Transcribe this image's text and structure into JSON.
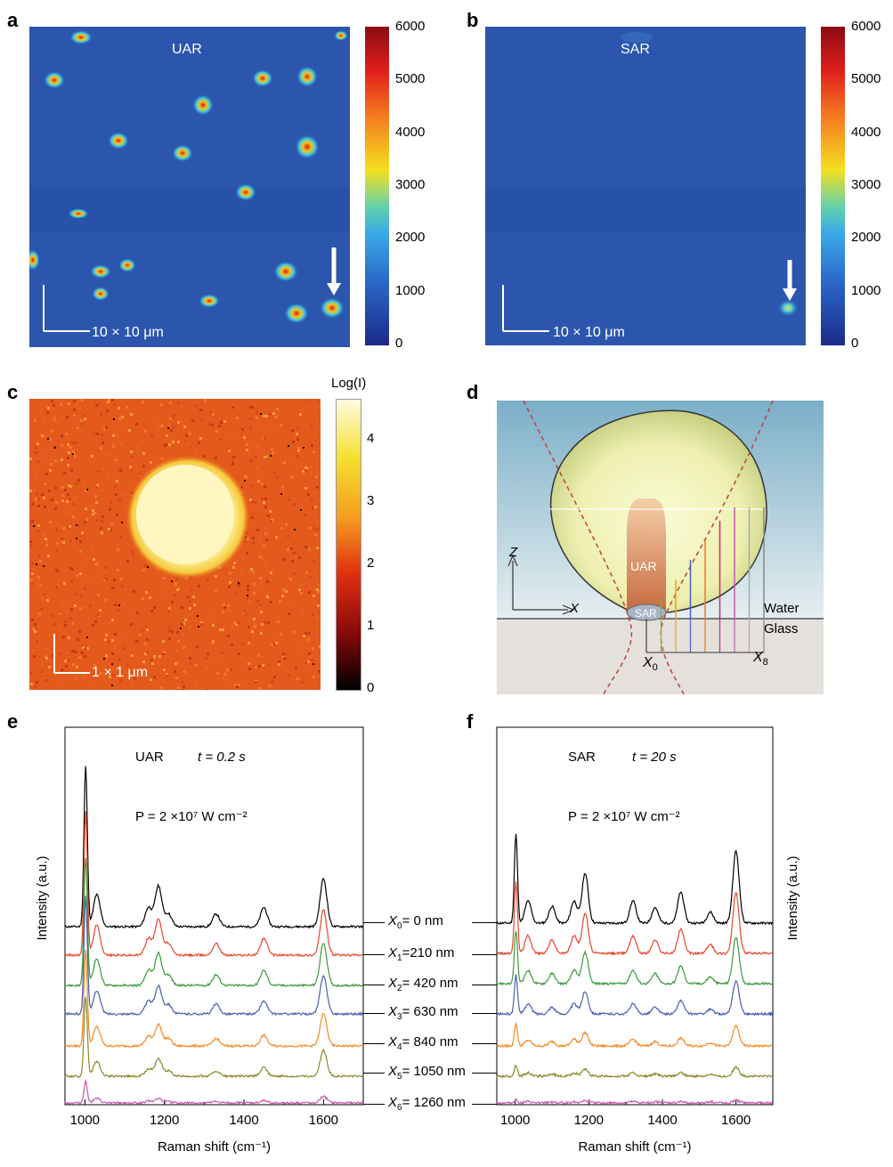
{
  "panels": {
    "a": {
      "letter": "a",
      "title": "UAR",
      "scale": "10 × 10 μm",
      "colorbar_ticks": [
        "6000",
        "5000",
        "4000",
        "3000",
        "2000",
        "1000",
        "0"
      ]
    },
    "b": {
      "letter": "b",
      "title": "SAR",
      "scale": "10 × 10 μm",
      "colorbar_ticks": [
        "6000",
        "5000",
        "4000",
        "3000",
        "2000",
        "1000",
        "0"
      ]
    },
    "c": {
      "letter": "c",
      "scale": "1 × 1 μm",
      "colorbar_title": "Log(I)",
      "colorbar_ticks": [
        "4",
        "3",
        "2",
        "1",
        "0"
      ]
    },
    "d": {
      "letter": "d",
      "uar": "UAR",
      "sar": "SAR",
      "z": "Z",
      "x": "X",
      "water": "Water",
      "glass": "Glass",
      "x0": "X",
      "x0_sub": "0",
      "x8": "X",
      "x8_sub": "8"
    },
    "e": {
      "letter": "e",
      "label": "UAR",
      "time": "t = 0.2 s",
      "power": "P = 2 ×10⁷ W cm⁻²",
      "ylabel": "Intensity (a.u.)",
      "xlabel": "Raman shift (cm⁻¹)"
    },
    "f": {
      "letter": "f",
      "label": "SAR",
      "time": "t = 20 s",
      "power": "P = 2 ×10⁷ W cm⁻²",
      "ylabel": "Intensity (a.u.)",
      "xlabel": "Raman shift (cm⁻¹)"
    }
  },
  "positions_labels": [
    {
      "x": "X",
      "sub": "0",
      "val": "= 0 nm"
    },
    {
      "x": "X",
      "sub": "1",
      "val": "=210 nm"
    },
    {
      "x": "X",
      "sub": "2",
      "val": "= 420 nm"
    },
    {
      "x": "X",
      "sub": "3",
      "val": "= 630 nm"
    },
    {
      "x": "X",
      "sub": "4",
      "val": "= 840 nm"
    },
    {
      "x": "X",
      "sub": "5",
      "val": "= 1050 nm"
    },
    {
      "x": "X",
      "sub": "6",
      "val": "= 1260 nm"
    }
  ],
  "chart_data": [
    {
      "type": "line",
      "panel": "e",
      "xlabel": "Raman shift (cm⁻¹)",
      "ylabel": "Intensity (a.u.)",
      "xlim": [
        950,
        1700
      ],
      "xticks": [
        1000,
        1200,
        1400,
        1600
      ],
      "series_colors": [
        "#000000",
        "#e8452c",
        "#3a9a3a",
        "#4a5fb0",
        "#f08a24",
        "#8a8a2a",
        "#c858b0"
      ],
      "peaks": [
        {
          "x": 1002,
          "amp": [
            150,
            135,
            120,
            110,
            90,
            75,
            20
          ]
        },
        {
          "x": 1030,
          "amp": [
            30,
            28,
            25,
            22,
            18,
            14,
            4
          ]
        },
        {
          "x": 1160,
          "amp": [
            18,
            16,
            14,
            12,
            9,
            7,
            2
          ]
        },
        {
          "x": 1185,
          "amp": [
            38,
            34,
            30,
            26,
            20,
            16,
            4
          ]
        },
        {
          "x": 1210,
          "amp": [
            12,
            11,
            10,
            9,
            7,
            5,
            1
          ]
        },
        {
          "x": 1330,
          "amp": [
            12,
            11,
            10,
            9,
            7,
            5,
            1
          ]
        },
        {
          "x": 1450,
          "amp": [
            18,
            16,
            14,
            12,
            10,
            8,
            2
          ]
        },
        {
          "x": 1600,
          "amp": [
            45,
            42,
            40,
            36,
            30,
            24,
            6
          ]
        }
      ]
    },
    {
      "type": "line",
      "panel": "f",
      "xlabel": "Raman shift (cm⁻¹)",
      "ylabel": "Intensity (a.u.)",
      "xlim": [
        950,
        1700
      ],
      "xticks": [
        1000,
        1200,
        1400,
        1600
      ],
      "series_colors": [
        "#000000",
        "#e8452c",
        "#3a9a3a",
        "#4a5fb0",
        "#f08a24",
        "#8a8a2a",
        "#c858b0"
      ],
      "peaks": [
        {
          "x": 1002,
          "amp": [
            80,
            65,
            48,
            35,
            20,
            10,
            3
          ]
        },
        {
          "x": 1035,
          "amp": [
            20,
            16,
            12,
            9,
            5,
            3,
            1
          ]
        },
        {
          "x": 1100,
          "amp": [
            15,
            12,
            9,
            6,
            4,
            2,
            1
          ]
        },
        {
          "x": 1160,
          "amp": [
            20,
            16,
            12,
            9,
            6,
            3,
            1
          ]
        },
        {
          "x": 1190,
          "amp": [
            45,
            36,
            28,
            20,
            12,
            6,
            2
          ]
        },
        {
          "x": 1320,
          "amp": [
            20,
            16,
            12,
            9,
            6,
            3,
            1
          ]
        },
        {
          "x": 1380,
          "amp": [
            14,
            12,
            9,
            6,
            4,
            2,
            1
          ]
        },
        {
          "x": 1450,
          "amp": [
            28,
            22,
            16,
            12,
            7,
            3,
            1
          ]
        },
        {
          "x": 1530,
          "amp": [
            10,
            8,
            6,
            4,
            3,
            2,
            1
          ]
        },
        {
          "x": 1600,
          "amp": [
            65,
            54,
            42,
            30,
            18,
            8,
            2
          ]
        }
      ]
    }
  ]
}
